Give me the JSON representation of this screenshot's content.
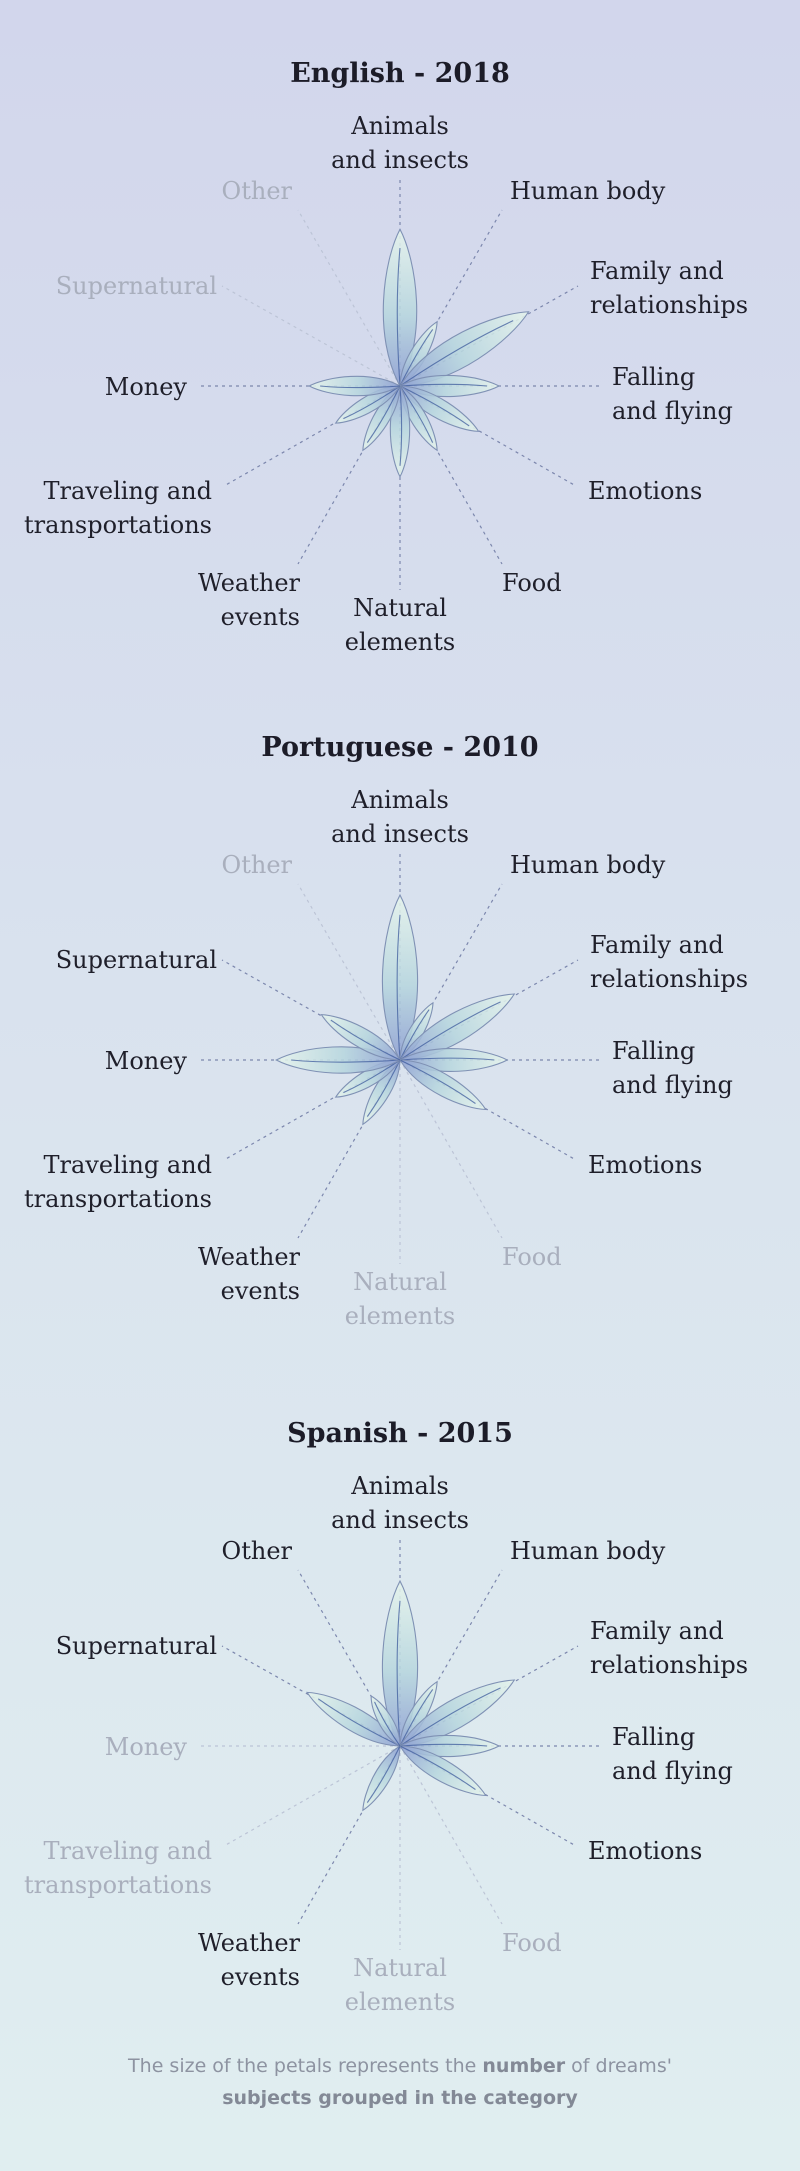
{
  "chart_data": [
    {
      "type": "radial-petal",
      "title": "English - 2018",
      "categories": [
        "Animals and insects",
        "Human body",
        "Family and relationships",
        "Falling and flying",
        "Emotions",
        "Food",
        "Natural elements",
        "Weather events",
        "Traveling and transportations",
        "Money",
        "Supernatural",
        "Other"
      ],
      "values": [
        0.95,
        0.45,
        0.9,
        0.6,
        0.55,
        0.45,
        0.55,
        0.45,
        0.45,
        0.55,
        0,
        0
      ]
    },
    {
      "type": "radial-petal",
      "title": "Portuguese - 2010",
      "categories": [
        "Animals and insects",
        "Human body",
        "Family and relationships",
        "Falling and flying",
        "Emotions",
        "Food",
        "Natural elements",
        "Weather events",
        "Traveling and transportations",
        "Money",
        "Supernatural",
        "Other"
      ],
      "values": [
        1.0,
        0.4,
        0.8,
        0.65,
        0.6,
        0,
        0,
        0.45,
        0.45,
        0.75,
        0.55,
        0
      ]
    },
    {
      "type": "radial-petal",
      "title": "Spanish - 2015",
      "categories": [
        "Animals and insects",
        "Human body",
        "Family and relationships",
        "Falling and flying",
        "Emotions",
        "Food",
        "Natural elements",
        "Weather events",
        "Traveling and transportations",
        "Money",
        "Supernatural",
        "Other"
      ],
      "values": [
        1.0,
        0.45,
        0.8,
        0.6,
        0.6,
        0,
        0,
        0.45,
        0,
        0,
        0.65,
        0.35
      ]
    }
  ],
  "labels": [
    [
      "Animals",
      "and insects"
    ],
    [
      "Human body"
    ],
    [
      "Family and",
      "relationships"
    ],
    [
      "Falling",
      "and flying"
    ],
    [
      "Emotions"
    ],
    [
      "Food"
    ],
    [
      "Natural",
      "elements"
    ],
    [
      "Weather",
      "events"
    ],
    [
      "Traveling and",
      "transportations"
    ],
    [
      "Money"
    ],
    [
      "Supernatural"
    ],
    [
      "Other"
    ]
  ],
  "footnote": {
    "part1": "The size of the petals represents the ",
    "bold1": "number",
    "part2": " of dreams'",
    "bold2": "subjects grouped in the category"
  },
  "colors": {
    "petal_light": "#e6f4ec",
    "petal_mid": "#b7d6de",
    "petal_dark": "#8e9fd2",
    "active_text": "#1f1f2a",
    "inactive_text": "#a9afbd"
  }
}
